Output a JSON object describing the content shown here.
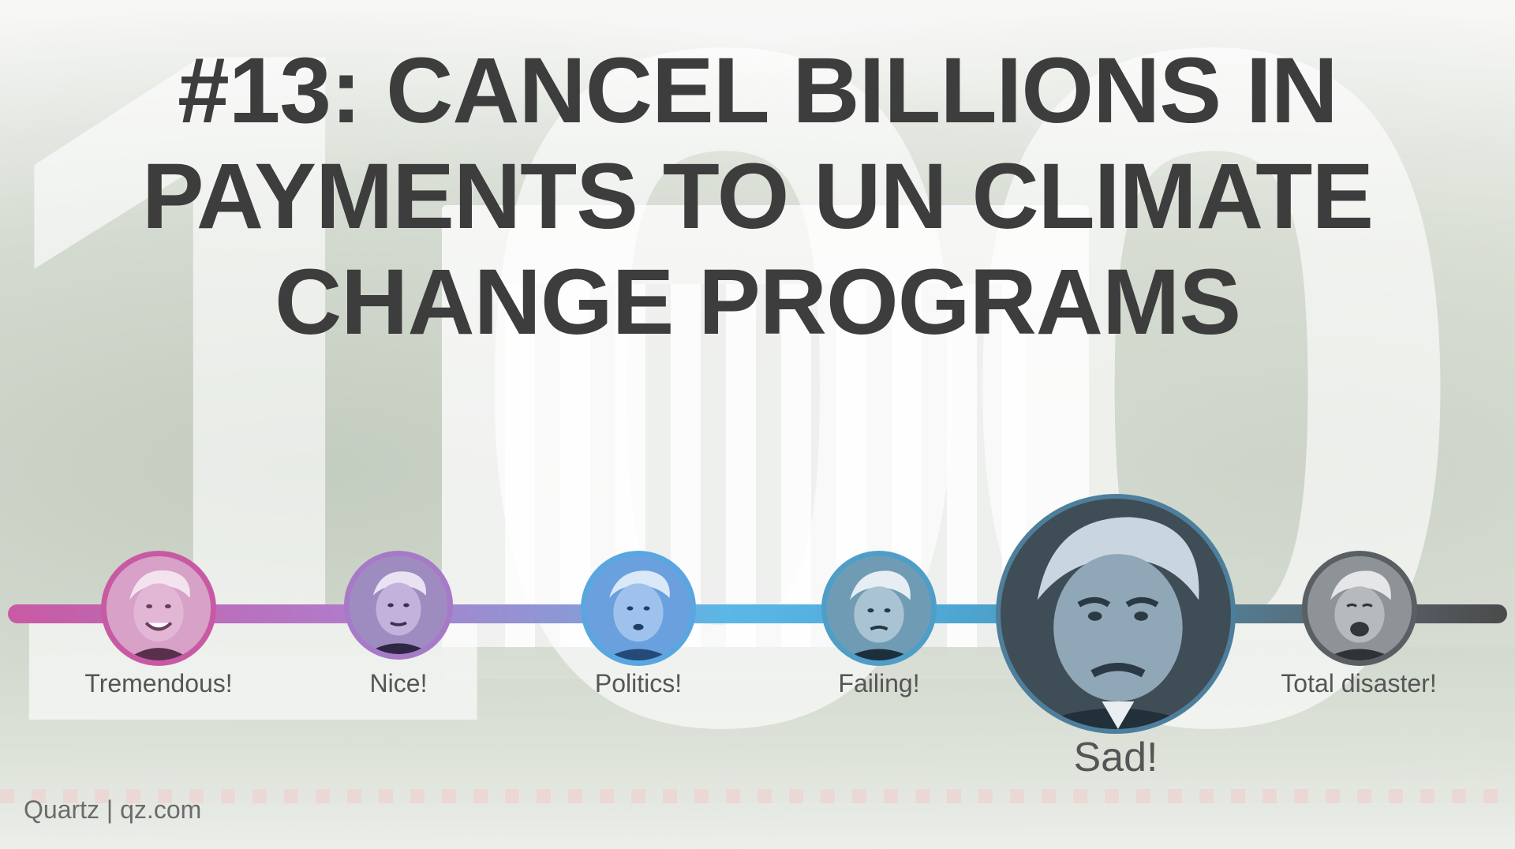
{
  "headline": {
    "line1": "#13: CANCEL BILLIONS IN",
    "line2": "PAYMENTS TO UN CLIMATE",
    "line3": "CHANGE PROGRAMS"
  },
  "watermark": "100",
  "scale": {
    "selected": "Sad!",
    "ratings": [
      {
        "label": "Tremendous!",
        "color": "#c85aa3"
      },
      {
        "label": "Nice!",
        "color": "#a77ac8"
      },
      {
        "label": "Politics!",
        "color": "#5aa6e0"
      },
      {
        "label": "Failing!",
        "color": "#4f9ec8"
      },
      {
        "label": "Sad!",
        "color": "#4d7f9c"
      },
      {
        "label": "Total disaster!",
        "color": "#5a5f64"
      }
    ]
  },
  "credit": "Quartz | qz.com",
  "colors": {
    "headline": "#3d3d3d",
    "labels": "#555555",
    "track_start": "#c85aa3",
    "track_end": "#4a4a4a"
  }
}
